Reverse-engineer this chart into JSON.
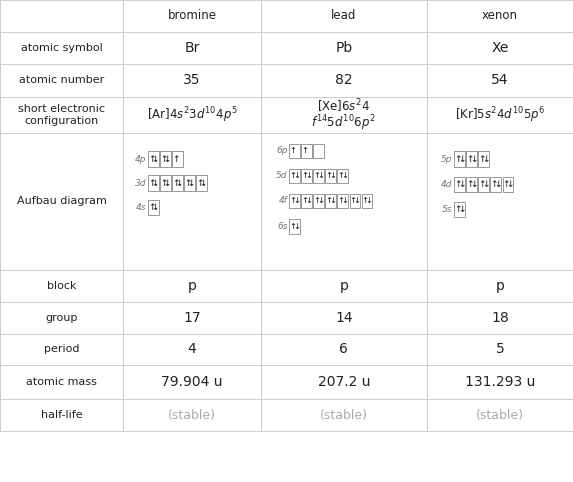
{
  "columns": [
    "",
    "bromine",
    "lead",
    "xenon"
  ],
  "rows": [
    "atomic symbol",
    "atomic number",
    "short electronic\nconfiguration",
    "Aufbau diagram",
    "block",
    "group",
    "period",
    "atomic mass",
    "half-life"
  ],
  "col_starts": [
    0.0,
    0.215,
    0.455,
    0.745
  ],
  "col_ends": [
    0.215,
    0.455,
    0.745,
    1.0
  ],
  "row_tops": [
    1.0,
    0.934,
    0.868,
    0.798,
    0.725,
    0.44,
    0.374,
    0.308,
    0.242,
    0.172,
    0.106
  ],
  "bg_color": "#ffffff",
  "border_color": "#cccccc",
  "text_color": "#222222",
  "gray_text": "#aaaaaa",
  "cell_data": {
    "atomic_symbol": [
      "Br",
      "Pb",
      "Xe"
    ],
    "atomic_number": [
      "35",
      "82",
      "54"
    ],
    "block": [
      "p",
      "p",
      "p"
    ],
    "group": [
      "17",
      "14",
      "18"
    ],
    "period": [
      "4",
      "6",
      "5"
    ],
    "atomic_mass": [
      "79.904 u",
      "207.2 u",
      "131.293 u"
    ],
    "half_life": [
      "(stable)",
      "(stable)",
      "(stable)"
    ]
  },
  "aufbau": {
    "bromine": {
      "orbitals": [
        "4p",
        "3d",
        "4s"
      ],
      "electrons": [
        [
          2,
          2,
          1
        ],
        [
          2,
          2,
          2,
          2,
          2
        ],
        [
          2
        ]
      ]
    },
    "lead": {
      "orbitals": [
        "6p",
        "5d",
        "4f",
        "6s"
      ],
      "electrons": [
        [
          1,
          1,
          0
        ],
        [
          2,
          2,
          2,
          2,
          2
        ],
        [
          2,
          2,
          2,
          2,
          2,
          2,
          2
        ],
        [
          2
        ]
      ]
    },
    "xenon": {
      "orbitals": [
        "5p",
        "4d",
        "5s"
      ],
      "electrons": [
        [
          2,
          2,
          2
        ],
        [
          2,
          2,
          2,
          2,
          2
        ],
        [
          2
        ]
      ]
    }
  }
}
